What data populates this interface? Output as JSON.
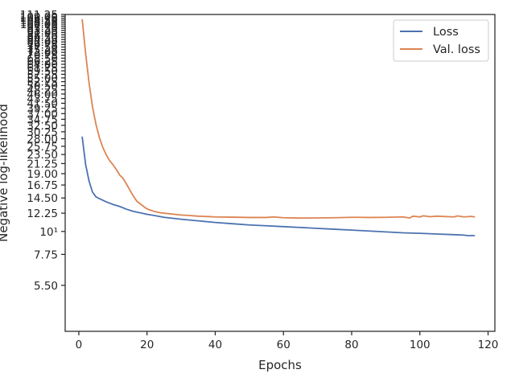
{
  "chart_data": {
    "type": "line",
    "xlabel": "Epochs",
    "ylabel": "Negative log-likelihood",
    "xlim": [
      -4,
      122
    ],
    "ylim": [
      3.3,
      111.25
    ],
    "yscale": "log",
    "grid": false,
    "legend_position": "top-right",
    "xticks": [
      0,
      20,
      40,
      60,
      80,
      100,
      120
    ],
    "xtick_labels": [
      "0",
      "20",
      "40",
      "60",
      "80",
      "100",
      "120"
    ],
    "yticks": [
      5.5,
      7.75,
      10,
      12.25,
      14.5,
      16.75,
      19,
      21.25,
      23.5,
      25.75,
      28,
      30.25,
      32.5,
      34.75,
      37,
      39.25,
      41.5,
      43.75,
      46,
      48.25,
      50.5,
      52.75,
      55,
      57.25,
      59.5,
      61.75,
      64,
      66.25,
      68.5,
      70.75,
      73,
      75.25,
      77.5,
      79.75,
      82,
      84.25,
      86.5,
      88.75,
      91,
      93.25,
      95.5,
      97.75,
      100,
      102.25,
      104.5,
      106.75,
      109,
      111.25
    ],
    "ytick_labels": [
      "5.50",
      "7.75",
      "10¹",
      "12.25",
      "14.50",
      "16.75",
      "19.00",
      "21.25",
      "23.50",
      "25.75",
      "28.00",
      "30.25",
      "32.50",
      "34.75",
      "37.00",
      "39.25",
      "41.50",
      "43.75",
      "46.00",
      "48.25",
      "50.50",
      "52.75",
      "55.00",
      "57.25",
      "59.50",
      "61.75",
      "64.00",
      "66.25",
      "68.50",
      "70.75",
      "73.00",
      "75.25",
      "77.50",
      "79.75",
      "82.00",
      "84.25",
      "86.50",
      "88.75",
      "91.00",
      "93.25",
      "95.50",
      "97.75",
      "100.00",
      "102.25",
      "104.50",
      "106.75",
      "109.00",
      "111.25"
    ],
    "series": [
      {
        "name": "Loss",
        "color": "#4c72b0",
        "points": [
          [
            1,
            28.5
          ],
          [
            2,
            21
          ],
          [
            3,
            17.5
          ],
          [
            4,
            15.5
          ],
          [
            5,
            14.7
          ],
          [
            6,
            14.4
          ],
          [
            8,
            13.9
          ],
          [
            10,
            13.5
          ],
          [
            12,
            13.2
          ],
          [
            14,
            12.8
          ],
          [
            16,
            12.5
          ],
          [
            18,
            12.3
          ],
          [
            20,
            12.1
          ],
          [
            22,
            11.95
          ],
          [
            25,
            11.7
          ],
          [
            30,
            11.45
          ],
          [
            35,
            11.25
          ],
          [
            40,
            11.05
          ],
          [
            45,
            10.9
          ],
          [
            50,
            10.75
          ],
          [
            55,
            10.65
          ],
          [
            60,
            10.55
          ],
          [
            65,
            10.45
          ],
          [
            70,
            10.35
          ],
          [
            75,
            10.25
          ],
          [
            80,
            10.15
          ],
          [
            85,
            10.05
          ],
          [
            90,
            9.95
          ],
          [
            95,
            9.85
          ],
          [
            100,
            9.8
          ],
          [
            105,
            9.72
          ],
          [
            110,
            9.65
          ],
          [
            113,
            9.6
          ],
          [
            114,
            9.55
          ],
          [
            116,
            9.55
          ]
        ]
      },
      {
        "name": "Val. loss",
        "color": "#dd8452",
        "points": [
          [
            1,
            105
          ],
          [
            2,
            72
          ],
          [
            3,
            52
          ],
          [
            4,
            40
          ],
          [
            5,
            33
          ],
          [
            6,
            28.5
          ],
          [
            7,
            25.5
          ],
          [
            8,
            23.5
          ],
          [
            9,
            22
          ],
          [
            10,
            21
          ],
          [
            11,
            19.9
          ],
          [
            12,
            18.7
          ],
          [
            13,
            18
          ],
          [
            14,
            16.9
          ],
          [
            15,
            15.8
          ],
          [
            16,
            14.8
          ],
          [
            17,
            14
          ],
          [
            18,
            13.6
          ],
          [
            19,
            13.2
          ],
          [
            20,
            12.85
          ],
          [
            22,
            12.5
          ],
          [
            24,
            12.3
          ],
          [
            26,
            12.2
          ],
          [
            28,
            12.1
          ],
          [
            30,
            12.0
          ],
          [
            32,
            11.95
          ],
          [
            35,
            11.85
          ],
          [
            38,
            11.8
          ],
          [
            40,
            11.75
          ],
          [
            45,
            11.72
          ],
          [
            50,
            11.68
          ],
          [
            55,
            11.68
          ],
          [
            57,
            11.75
          ],
          [
            60,
            11.65
          ],
          [
            65,
            11.6
          ],
          [
            70,
            11.62
          ],
          [
            75,
            11.65
          ],
          [
            80,
            11.7
          ],
          [
            82,
            11.7
          ],
          [
            85,
            11.68
          ],
          [
            90,
            11.7
          ],
          [
            95,
            11.75
          ],
          [
            97,
            11.62
          ],
          [
            98,
            11.85
          ],
          [
            100,
            11.75
          ],
          [
            101,
            11.9
          ],
          [
            103,
            11.78
          ],
          [
            105,
            11.85
          ],
          [
            110,
            11.75
          ],
          [
            111,
            11.88
          ],
          [
            113,
            11.75
          ],
          [
            115,
            11.82
          ],
          [
            116,
            11.75
          ]
        ]
      }
    ]
  }
}
